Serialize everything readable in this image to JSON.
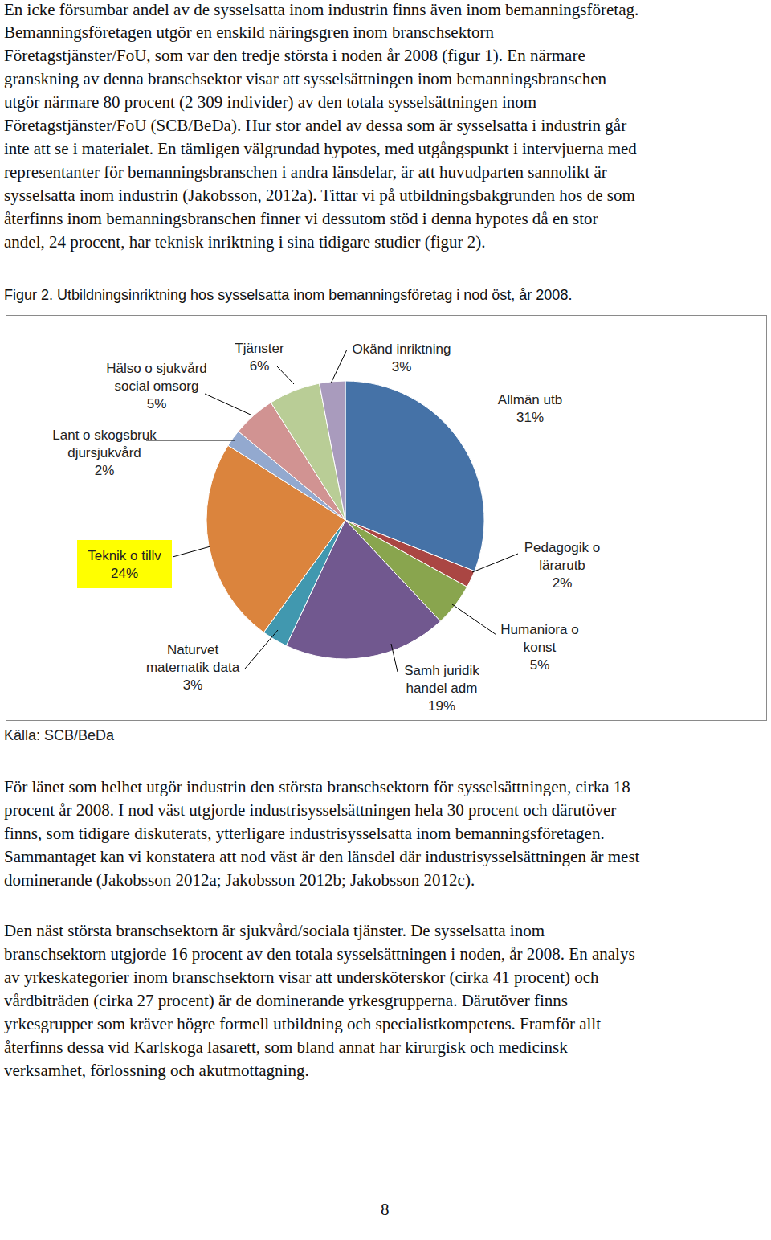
{
  "document": {
    "paragraphs_top": [
      [
        "En icke försumbar andel av de sysselsatta inom industrin finns även inom bemanningsföretag.",
        "Bemanningsföretagen utgör en enskild näringsgren inom branschsektorn",
        "Företagstjänster/FoU, som var den tredje största i noden år 2008 (figur 1). En närmare",
        "granskning av denna branschsektor visar att sysselsättningen inom bemanningsbranschen",
        "utgör närmare 80 procent (2 309 individer) av den totala sysselsättningen inom",
        "Företagstjänster/FoU (SCB/BeDa). Hur stor andel av dessa som är sysselsatta i industrin går",
        "inte att se i materialet. En tämligen välgrundad hypotes, med utgångspunkt i intervjuerna med",
        "representanter för bemanningsbranschen i andra länsdelar, är att huvudparten sannolikt är",
        "sysselsatta inom industrin (Jakobsson, 2012a). Tittar vi på utbildningsbakgrunden hos de som",
        "återfinns inom bemanningsbranschen finner vi dessutom stöd i denna hypotes då en stor",
        "andel, 24 procent, har teknisk inriktning i sina tidigare studier (figur 2)."
      ]
    ],
    "caption": "Figur 2. Utbildningsinriktning hos sysselsatta inom bemanningsföretag i nod öst, år 2008.",
    "source": "Källa: SCB/BeDa",
    "paragraphs_bottom": [
      [
        "För länet som helhet utgör industrin den största branschsektorn för sysselsättningen, cirka 18",
        "procent år 2008. I nod väst utgjorde industrisysselsättningen hela 30 procent och därutöver",
        "finns, som tidigare diskuterats, ytterligare industrisysselsatta inom bemanningsföretagen.",
        "Sammantaget kan vi konstatera att nod väst är den länsdel där industrisysselsättningen är mest",
        "dominerande (Jakobsson 2012a; Jakobsson 2012b; Jakobsson 2012c)."
      ],
      [
        "Den näst största branschsektorn är sjukvård/sociala tjänster. De sysselsatta inom",
        "branschsektorn utgjorde 16 procent av den totala sysselsättningen i noden, år 2008. En analys",
        "av yrkeskategorier inom branschsektorn visar att undersköterskor (cirka 41 procent) och",
        "vårdbiträden (cirka 27 procent) är de dominerande yrkesgrupperna. Därutöver finns",
        "yrkesgrupper som kräver högre formell utbildning och specialistkompetens. Framför allt",
        "återfinns dessa vid Karlskoga lasarett, som bland annat har kirurgisk och medicinsk",
        "verksamhet, förlossning och akutmottagning."
      ]
    ],
    "page_number": "8"
  },
  "chart_data": {
    "type": "pie",
    "categories": [
      "Allmän utb",
      "Pedagogik o\nlärarutb",
      "Humaniora o\nkonst",
      "Samh juridik\nhandel adm",
      "Naturvet\nmatematik data",
      "Teknik o tillv",
      "Lant o skogsbruk\ndjursjukvård",
      "Hälso o sjukvård\nsocial omsorg",
      "Tjänster",
      "Okänd inriktning"
    ],
    "values": [
      31,
      2,
      5,
      19,
      3,
      24,
      2,
      5,
      6,
      3
    ],
    "value_labels": [
      "31%",
      "2%",
      "5%",
      "19%",
      "3%",
      "24%",
      "2%",
      "5%",
      "6%",
      "3%"
    ],
    "colors": [
      "#4572a7",
      "#aa4643",
      "#89a54e",
      "#71588f",
      "#4198af",
      "#db843d",
      "#93a9cf",
      "#d19392",
      "#b9cd96",
      "#a99bbd"
    ],
    "data_labels": true
  }
}
